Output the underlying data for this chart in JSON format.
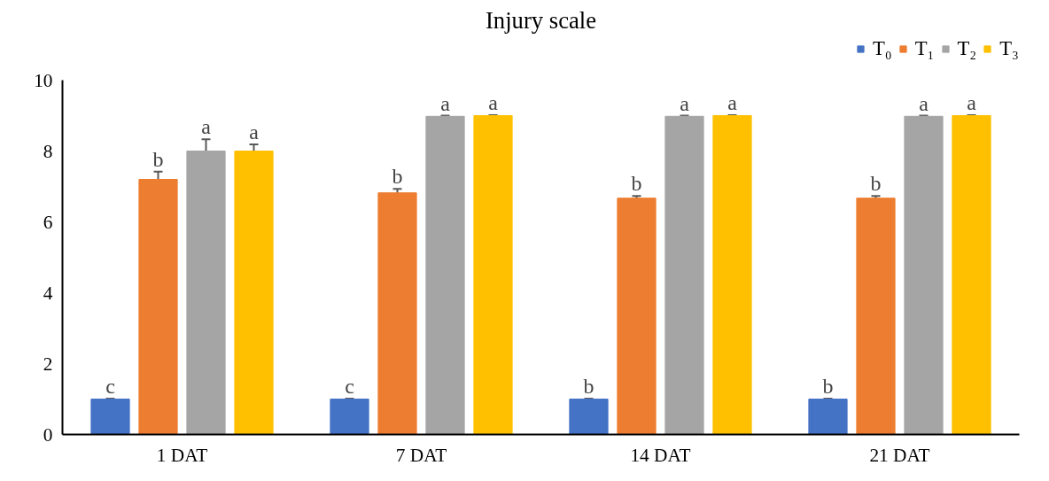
{
  "chart_data": {
    "type": "bar",
    "title": "Injury scale",
    "categories": [
      "1 DAT",
      "7 DAT",
      "14 DAT",
      "21 DAT"
    ],
    "series": [
      {
        "name": "T₀",
        "color": "#4472c4",
        "values": [
          1,
          1,
          1,
          1
        ],
        "errors": [
          0.01,
          0.01,
          0.01,
          0.01
        ],
        "value_labels": [
          "c",
          "c",
          "b",
          "b"
        ]
      },
      {
        "name": "T₁",
        "color": "#ed7d31",
        "values": [
          7.2,
          6.82,
          6.67,
          6.67
        ],
        "errors": [
          0.22,
          0.11,
          0.06,
          0.06
        ],
        "value_labels": [
          "b",
          "b",
          "b",
          "b"
        ]
      },
      {
        "name": "T₂",
        "color": "#a5a5a5",
        "values": [
          8,
          8.98,
          8.98,
          8.98
        ],
        "errors": [
          0.33,
          0.02,
          0.02,
          0.02
        ],
        "value_labels": [
          "a",
          "a",
          "a",
          "a"
        ]
      },
      {
        "name": "T₃",
        "color": "#ffc000",
        "values": [
          8,
          9,
          9,
          9
        ],
        "errors": [
          0.19,
          0.01,
          0.01,
          0.01
        ],
        "value_labels": [
          "a",
          "a",
          "a",
          "a"
        ]
      }
    ],
    "ylim": [
      0,
      10
    ],
    "yticks": [
      0,
      2,
      4,
      6,
      8,
      10
    ],
    "grid": false,
    "legend": "top right"
  }
}
